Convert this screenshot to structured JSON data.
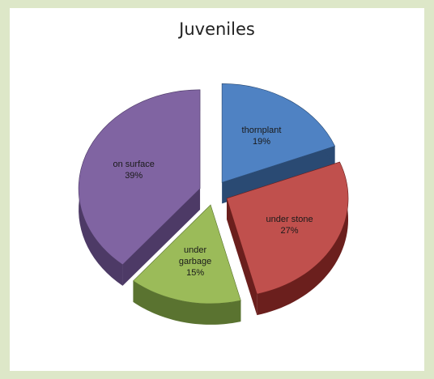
{
  "chart_data": {
    "type": "pie",
    "title": "Juveniles",
    "exploded": true,
    "three_d": true,
    "slices": [
      {
        "label": "thornplant",
        "value": 19,
        "display": "19%",
        "color": "#4f82c3",
        "side_color": "#2a4a73"
      },
      {
        "label": "under stone",
        "value": 27,
        "display": "27%",
        "color": "#c0504d",
        "side_color": "#6b1f1d"
      },
      {
        "label": "under garbage",
        "value": 15,
        "display": "15%",
        "color": "#9bbb59",
        "side_color": "#5a7330"
      },
      {
        "label": "on surface",
        "value": 39,
        "display": "39%",
        "color": "#8064a2",
        "side_color": "#4d3a66"
      }
    ]
  }
}
